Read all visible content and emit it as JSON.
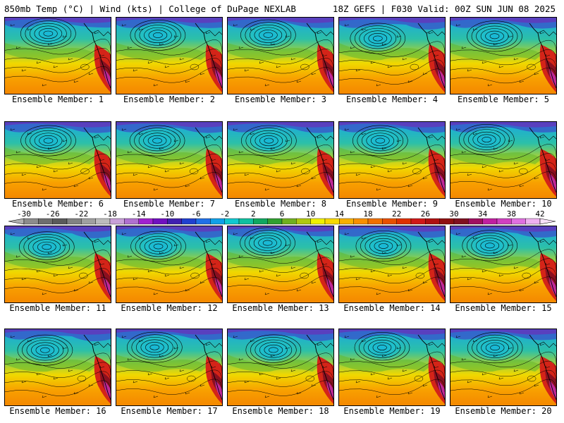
{
  "header": {
    "left": "850mb Temp (°C) | Wind (kts) | College of DuPage NEXLAB",
    "right": "18Z GEFS | F030 Valid: 00Z SUN JUN 08 2025"
  },
  "members": [
    "Ensemble Member: 1",
    "Ensemble Member: 2",
    "Ensemble Member: 3",
    "Ensemble Member: 4",
    "Ensemble Member: 5",
    "Ensemble Member: 6",
    "Ensemble Member: 7",
    "Ensemble Member: 8",
    "Ensemble Member: 9",
    "Ensemble Member: 10",
    "Ensemble Member: 11",
    "Ensemble Member: 12",
    "Ensemble Member: 13",
    "Ensemble Member: 14",
    "Ensemble Member: 15",
    "Ensemble Member: 16",
    "Ensemble Member: 17",
    "Ensemble Member: 18",
    "Ensemble Member: 19",
    "Ensemble Member: 20"
  ],
  "colorbar": {
    "labels": [
      "-30",
      "-26",
      "-22",
      "-18",
      "-14",
      "-10",
      "-6",
      "-2",
      "2",
      "6",
      "10",
      "14",
      "18",
      "22",
      "26",
      "30",
      "34",
      "38",
      "42"
    ],
    "colors": [
      "#8c8c8c",
      "#6e6e6e",
      "#5a5a5a",
      "#828282",
      "#a0a0a0",
      "#bcbcbc",
      "#c8a0d8",
      "#b070d0",
      "#a020d0",
      "#7010c0",
      "#4020b0",
      "#2040d0",
      "#2070e8",
      "#10a0e8",
      "#10c8d0",
      "#10c0a0",
      "#10a860",
      "#30a030",
      "#70b020",
      "#b0c810",
      "#f0f000",
      "#f8d800",
      "#f8b000",
      "#f89000",
      "#f07000",
      "#e85000",
      "#e03000",
      "#d01818",
      "#b01010",
      "#901010",
      "#801020",
      "#a01060",
      "#c020a0",
      "#d040c0",
      "#e070e0",
      "#f0b0f0"
    ]
  }
}
